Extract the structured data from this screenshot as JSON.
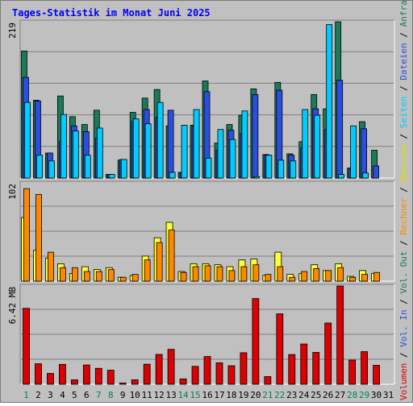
{
  "title": "Tages-Statistik im Monat Juni 2025",
  "chart_data": [
    {
      "type": "bar",
      "panel": "top",
      "y_tick_label": "219",
      "ylim": [
        0,
        219
      ],
      "days": [
        1,
        2,
        3,
        4,
        5,
        6,
        7,
        8,
        9,
        10,
        11,
        12,
        13,
        14,
        15,
        16,
        17,
        18,
        19,
        20,
        21,
        22,
        23,
        24,
        25,
        26,
        27,
        28,
        29,
        30,
        31
      ],
      "weekend_days": [
        1,
        7,
        8,
        14,
        15,
        21,
        22,
        28,
        29
      ],
      "series": [
        {
          "name": "Anfragen",
          "color": "#1a7a5a",
          "values": [
            178,
            109,
            35,
            115,
            86,
            75,
            95,
            5,
            25,
            92,
            112,
            124,
            73,
            8,
            74,
            136,
            49,
            75,
            88,
            125,
            33,
            134,
            34,
            51,
            117,
            97,
            219,
            14,
            79,
            39,
            0
          ]
        },
        {
          "name": "Dateien",
          "color": "#2a4fe0",
          "values": [
            141,
            108,
            35,
            51,
            73,
            65,
            56,
            5,
            26,
            79,
            96,
            85,
            95,
            8,
            73,
            121,
            39,
            67,
            62,
            117,
            32,
            123,
            32,
            42,
            97,
            68,
            137,
            13,
            69,
            17,
            0
          ]
        },
        {
          "name": "Seiten",
          "color": "#00ccff",
          "values": [
            106,
            32,
            24,
            89,
            66,
            32,
            70,
            5,
            26,
            83,
            76,
            106,
            8,
            74,
            96,
            28,
            68,
            54,
            94,
            2,
            32,
            25,
            24,
            96,
            88,
            215,
            5,
            73,
            7,
            0,
            0
          ]
        }
      ],
      "legend": [
        "Anfragen",
        "Dateien",
        "Seiten"
      ]
    },
    {
      "type": "bar",
      "panel": "middle",
      "y_tick_label": "102",
      "ylim": [
        0,
        102
      ],
      "series": [
        {
          "name": "Besuche",
          "color": "#ffff33",
          "values": [
            66,
            32,
            24,
            18,
            8,
            15,
            12,
            14,
            4,
            6,
            26,
            45,
            61,
            10,
            18,
            18,
            17,
            15,
            22,
            23,
            6,
            30,
            7,
            8,
            17,
            11,
            18,
            5,
            11,
            8,
            0
          ]
        },
        {
          "name": "Rechner",
          "color": "#ff8800",
          "values": [
            96,
            90,
            30,
            14,
            14,
            10,
            10,
            12,
            4,
            7,
            22,
            40,
            53,
            9,
            15,
            16,
            15,
            11,
            15,
            17,
            7,
            15,
            4,
            10,
            13,
            11,
            14,
            4,
            7,
            9,
            0
          ]
        }
      ],
      "legend": [
        "Besuche",
        "Rechner"
      ]
    },
    {
      "type": "bar",
      "panel": "bottom",
      "y_tick_label": "6.42 MB",
      "ylim": [
        0,
        6.42
      ],
      "series": [
        {
          "name": "Volumen",
          "color": "#dd0000",
          "values": [
            4.96,
            1.34,
            0.71,
            1.3,
            0.29,
            1.26,
            1.04,
            0.92,
            0.08,
            0.29,
            1.31,
            1.95,
            2.28,
            0.35,
            1.17,
            1.81,
            1.4,
            1.21,
            2.06,
            5.6,
            0.5,
            4.6,
            1.94,
            2.63,
            2.08,
            4.0,
            6.42,
            1.58,
            2.13,
            1.24,
            0
          ]
        }
      ],
      "legend": [
        "Volumen",
        "Vol. In",
        "Vol. Out"
      ]
    }
  ],
  "right_legend": [
    {
      "text": "Volumen",
      "color": "#dd0000"
    },
    {
      "text": " / ",
      "color": "#000000"
    },
    {
      "text": "Vol. In",
      "color": "#2a4fe0"
    },
    {
      "text": " / ",
      "color": "#000000"
    },
    {
      "text": "Vol. Out",
      "color": "#1a7a5a"
    },
    {
      "text": " / ",
      "color": "#000000"
    },
    {
      "text": "Rechner",
      "color": "#ff8800"
    },
    {
      "text": " / ",
      "color": "#000000"
    },
    {
      "text": "Besuche",
      "color": "#dddd00"
    },
    {
      "text": " / ",
      "color": "#000000"
    },
    {
      "text": "Seiten",
      "color": "#00ccff"
    },
    {
      "text": " / ",
      "color": "#000000"
    },
    {
      "text": "Dateien",
      "color": "#2a4fe0"
    },
    {
      "text": " / ",
      "color": "#000000"
    },
    {
      "text": "Anfragen",
      "color": "#1a7a5a"
    }
  ],
  "day_label_colors": {
    "weekday": "#000000",
    "weekend": "#008060"
  }
}
